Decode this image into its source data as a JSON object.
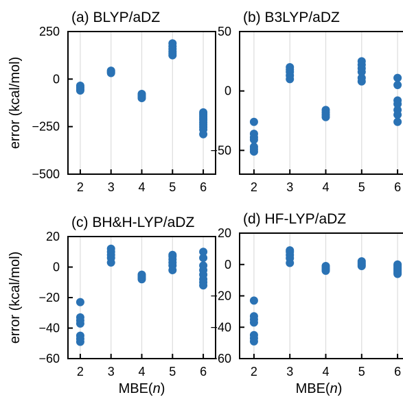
{
  "chart_data": [
    {
      "type": "scatter",
      "title": "(a) BLYP/aDZ",
      "xlabel": "",
      "ylabel": "error (kcal/mol)",
      "xlim": [
        1.6,
        6.4
      ],
      "ylim": [
        -500,
        250
      ],
      "x_ticks": [
        2,
        3,
        4,
        5,
        6
      ],
      "y_ticks": [
        -500,
        -250,
        0,
        250
      ],
      "grid": "x-only",
      "marker_color": "#2a72b4",
      "points": [
        [
          2,
          -35
        ],
        [
          2,
          -42
        ],
        [
          2,
          -48
        ],
        [
          2,
          -55
        ],
        [
          2,
          -60
        ],
        [
          3,
          32
        ],
        [
          3,
          38
        ],
        [
          3,
          44
        ],
        [
          4,
          -78
        ],
        [
          4,
          -85
        ],
        [
          4,
          -92
        ],
        [
          4,
          -100
        ],
        [
          5,
          125
        ],
        [
          5,
          135
        ],
        [
          5,
          145
        ],
        [
          5,
          158
        ],
        [
          5,
          172
        ],
        [
          5,
          188
        ],
        [
          6,
          -175
        ],
        [
          6,
          -185
        ],
        [
          6,
          -195
        ],
        [
          6,
          -205
        ],
        [
          6,
          -215
        ],
        [
          6,
          -228
        ],
        [
          6,
          -240
        ],
        [
          6,
          -252
        ],
        [
          6,
          -265
        ],
        [
          6,
          -290
        ]
      ]
    },
    {
      "type": "scatter",
      "title": "(b) B3LYP/aDZ",
      "xlabel": "",
      "ylabel": "",
      "xlim": [
        1.6,
        6.4
      ],
      "ylim": [
        -70,
        50
      ],
      "x_ticks": [
        2,
        3,
        4,
        5,
        6
      ],
      "y_ticks": [
        -50,
        0,
        50
      ],
      "grid": "x-only",
      "marker_color": "#2a72b4",
      "points": [
        [
          2,
          -26
        ],
        [
          2,
          -36
        ],
        [
          2,
          -39
        ],
        [
          2,
          -41
        ],
        [
          2,
          -47
        ],
        [
          2,
          -49
        ],
        [
          2,
          -51
        ],
        [
          3,
          10
        ],
        [
          3,
          13
        ],
        [
          3,
          16
        ],
        [
          3,
          18
        ],
        [
          3,
          20
        ],
        [
          4,
          -16
        ],
        [
          4,
          -18
        ],
        [
          4,
          -20
        ],
        [
          4,
          -22
        ],
        [
          5,
          8
        ],
        [
          5,
          11
        ],
        [
          5,
          16
        ],
        [
          5,
          19
        ],
        [
          5,
          22
        ],
        [
          5,
          25
        ],
        [
          6,
          11
        ],
        [
          6,
          5
        ],
        [
          6,
          -8
        ],
        [
          6,
          -11
        ],
        [
          6,
          -16
        ],
        [
          6,
          -20
        ],
        [
          6,
          -26
        ]
      ]
    },
    {
      "type": "scatter",
      "title": "(c) BH&H-LYP/aDZ",
      "xlabel": "MBE(n)",
      "ylabel": "error (kcal/mol)",
      "xlim": [
        1.6,
        6.4
      ],
      "ylim": [
        -60,
        20
      ],
      "x_ticks": [
        2,
        3,
        4,
        5,
        6
      ],
      "y_ticks": [
        -60,
        -40,
        -20,
        0,
        20
      ],
      "grid": "x-only",
      "marker_color": "#2a72b4",
      "points": [
        [
          2,
          -23
        ],
        [
          2,
          -33
        ],
        [
          2,
          -35
        ],
        [
          2,
          -37
        ],
        [
          2,
          -45
        ],
        [
          2,
          -47
        ],
        [
          2,
          -49
        ],
        [
          3,
          3
        ],
        [
          3,
          6
        ],
        [
          3,
          8
        ],
        [
          3,
          10
        ],
        [
          3,
          12
        ],
        [
          4,
          -5
        ],
        [
          4,
          -6
        ],
        [
          4,
          -7
        ],
        [
          4,
          -8
        ],
        [
          5,
          -2
        ],
        [
          5,
          1
        ],
        [
          5,
          3
        ],
        [
          5,
          5
        ],
        [
          5,
          7
        ],
        [
          5,
          8
        ],
        [
          6,
          10
        ],
        [
          6,
          6
        ],
        [
          6,
          1
        ],
        [
          6,
          -2
        ],
        [
          6,
          -5
        ],
        [
          6,
          -8
        ],
        [
          6,
          -10
        ],
        [
          6,
          -12
        ]
      ]
    },
    {
      "type": "scatter",
      "title": "(d) HF-LYP/aDZ",
      "xlabel": "MBE(n)",
      "ylabel": "",
      "xlim": [
        1.6,
        6.4
      ],
      "ylim": [
        -60,
        20
      ],
      "x_ticks": [
        2,
        3,
        4,
        5,
        6
      ],
      "y_ticks": [
        -60,
        -40,
        -20,
        0,
        20
      ],
      "grid": "x-only",
      "marker_color": "#2a72b4",
      "points": [
        [
          2,
          -23
        ],
        [
          2,
          -33
        ],
        [
          2,
          -35
        ],
        [
          2,
          -37
        ],
        [
          2,
          -45
        ],
        [
          2,
          -47
        ],
        [
          2,
          -49
        ],
        [
          3,
          1
        ],
        [
          3,
          4
        ],
        [
          3,
          6
        ],
        [
          3,
          8
        ],
        [
          3,
          9
        ],
        [
          4,
          -1
        ],
        [
          4,
          -2
        ],
        [
          4,
          -3
        ],
        [
          4,
          -4
        ],
        [
          5,
          -1
        ],
        [
          5,
          0
        ],
        [
          5,
          1
        ],
        [
          5,
          2
        ],
        [
          6,
          0
        ],
        [
          6,
          -1
        ],
        [
          6,
          -2
        ],
        [
          6,
          -3
        ],
        [
          6,
          -4
        ],
        [
          6,
          -5
        ],
        [
          6,
          -6
        ]
      ]
    }
  ]
}
